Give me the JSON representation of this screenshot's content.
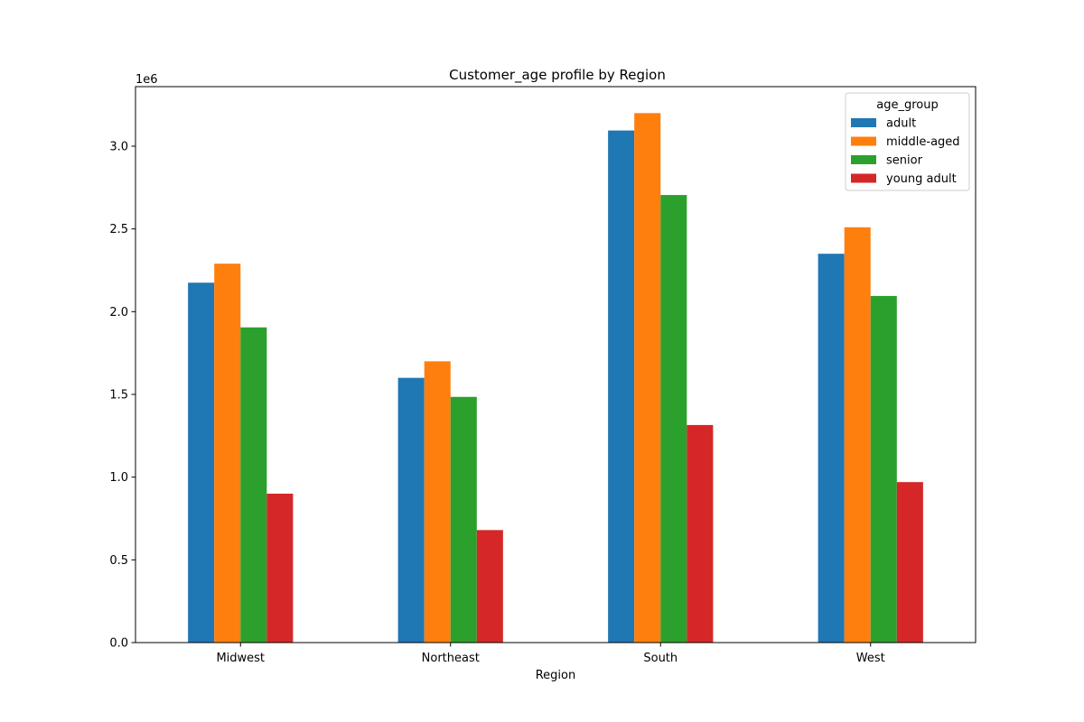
{
  "chart_data": {
    "type": "bar",
    "title": "Customer_age profile by Region",
    "xlabel": "Region",
    "ylabel": "",
    "y_offset_text": "1e6",
    "ylim": [
      0,
      3360000
    ],
    "yticks": [
      0,
      500000,
      1000000,
      1500000,
      2000000,
      2500000,
      3000000
    ],
    "ytick_labels": [
      "0.0",
      "0.5",
      "1.0",
      "1.5",
      "2.0",
      "2.5",
      "3.0"
    ],
    "categories": [
      "Midwest",
      "Northeast",
      "South",
      "West"
    ],
    "legend": {
      "title": "age_group",
      "position": "top-right"
    },
    "grid": false,
    "series": [
      {
        "name": "adult",
        "color": "#1f77b4",
        "values": [
          2175000,
          1600000,
          3095000,
          2350000
        ]
      },
      {
        "name": "middle-aged",
        "color": "#ff7f0e",
        "values": [
          2290000,
          1700000,
          3200000,
          2510000
        ]
      },
      {
        "name": "senior",
        "color": "#2ca02c",
        "values": [
          1905000,
          1485000,
          2705000,
          2095000
        ]
      },
      {
        "name": "young adult",
        "color": "#d62728",
        "values": [
          900000,
          680000,
          1315000,
          970000
        ]
      }
    ]
  }
}
